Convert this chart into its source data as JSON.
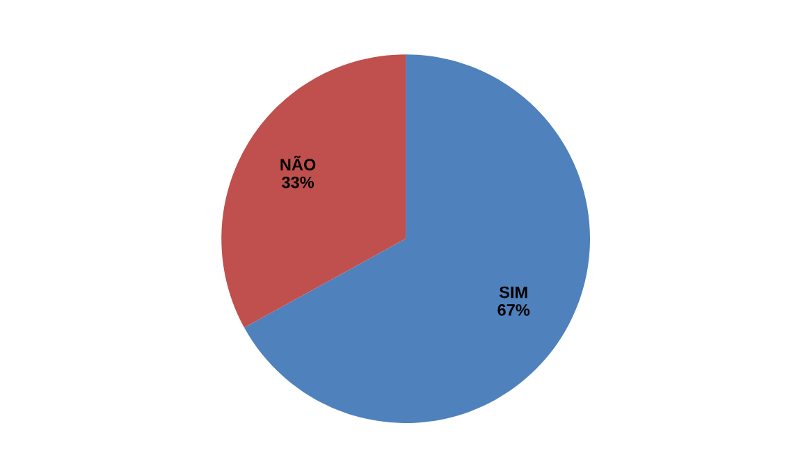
{
  "chart_data": {
    "type": "pie",
    "categories": [
      "SIM",
      "NÃO"
    ],
    "values": [
      67,
      33
    ],
    "colors": [
      "#4f81bd",
      "#c0504d"
    ],
    "value_labels": [
      "67%",
      "33%"
    ],
    "legend": false
  }
}
